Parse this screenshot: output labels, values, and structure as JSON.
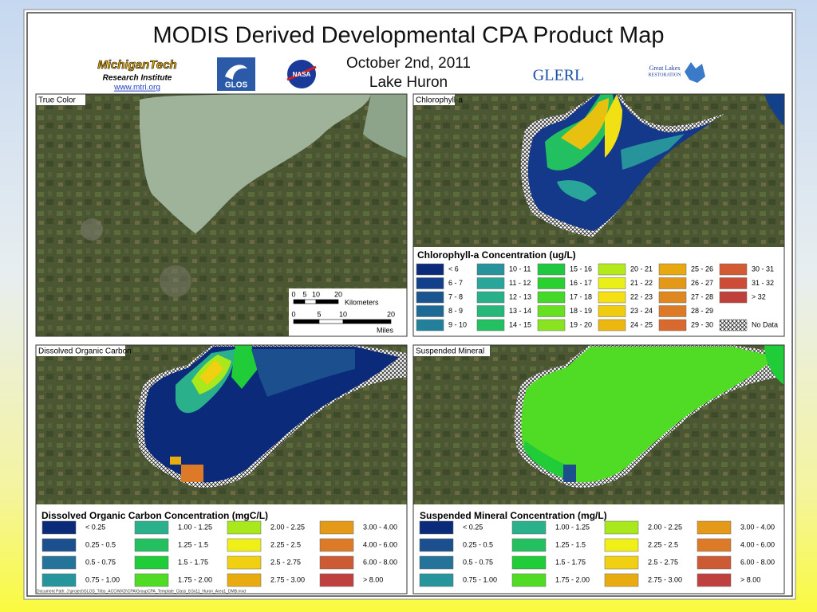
{
  "header": {
    "title": "MODIS Derived Developmental CPA Product Map",
    "date": "October 2nd, 2011",
    "lake": "Lake Huron"
  },
  "logos": {
    "mtri": {
      "name": "MichiganTech",
      "subtitle": "Research Institute",
      "url": "www.mtri.org"
    },
    "glos": "GLOS",
    "nasa": "NASA",
    "glerl": "GLERL",
    "glri": {
      "line1": "Great Lakes",
      "line2": "RESTORATION"
    }
  },
  "panels": {
    "true_color": {
      "label": "True Color",
      "scale": {
        "km_ticks": [
          "0",
          "5",
          "10",
          "20"
        ],
        "km_unit": "Kilometers",
        "mi_ticks": [
          "0",
          "5",
          "10",
          "20"
        ],
        "mi_unit": "Miles"
      }
    },
    "chlorophyll": {
      "label": "Chlorophyll-a",
      "legend": {
        "title": "Chlorophyll-a Concentration (ug/L)",
        "columns": [
          [
            {
              "label": "< 6",
              "color": "#0c2a7a"
            },
            {
              "label": "6 - 7",
              "color": "#12408a"
            },
            {
              "label": "7 - 8",
              "color": "#1a5590"
            },
            {
              "label": "8 - 9",
              "color": "#1e6a96"
            },
            {
              "label": "9 - 10",
              "color": "#23809a"
            }
          ],
          [
            {
              "label": "10 - 11",
              "color": "#27949c"
            },
            {
              "label": "11 - 12",
              "color": "#2aa59a"
            },
            {
              "label": "12 - 13",
              "color": "#27b08a"
            },
            {
              "label": "13 - 14",
              "color": "#25b878"
            },
            {
              "label": "14 - 15",
              "color": "#22c060"
            }
          ],
          [
            {
              "label": "15 - 16",
              "color": "#20c840"
            },
            {
              "label": "16 - 17",
              "color": "#2ad030"
            },
            {
              "label": "17 - 18",
              "color": "#44d828"
            },
            {
              "label": "18 - 19",
              "color": "#66e020"
            },
            {
              "label": "19 - 20",
              "color": "#88e420"
            }
          ],
          [
            {
              "label": "20 - 21",
              "color": "#b4ea1c"
            },
            {
              "label": "21 - 22",
              "color": "#e8f018"
            },
            {
              "label": "22 - 23",
              "color": "#f4e014"
            },
            {
              "label": "23 - 24",
              "color": "#f0cc10"
            },
            {
              "label": "24 - 25",
              "color": "#ecb810"
            }
          ],
          [
            {
              "label": "25 - 26",
              "color": "#e8a810"
            },
            {
              "label": "26 - 27",
              "color": "#e49818"
            },
            {
              "label": "27 - 28",
              "color": "#e08820"
            },
            {
              "label": "28 - 29",
              "color": "#dc7a28"
            },
            {
              "label": "29 - 30",
              "color": "#d86a30"
            }
          ],
          [
            {
              "label": "30 - 31",
              "color": "#d45a34"
            },
            {
              "label": "31 - 32",
              "color": "#cc4c38"
            },
            {
              "label": "> 32",
              "color": "#c0403c"
            }
          ]
        ],
        "no_data": "No Data"
      }
    },
    "doc": {
      "label": "Dissolved Organic Carbon",
      "legend": {
        "title": "Dissolved Organic Carbon Concentration (mgC/L)",
        "columns": [
          [
            {
              "label": "< 0.25",
              "color": "#0b2b7a"
            },
            {
              "label": "0.25 - 0.5",
              "color": "#1b4f8e"
            },
            {
              "label": "0.5 - 0.75",
              "color": "#24739a"
            },
            {
              "label": "0.75 - 1.00",
              "color": "#27959c"
            }
          ],
          [
            {
              "label": "1.00 - 1.25",
              "color": "#2ab08a"
            },
            {
              "label": "1.25 - 1.5",
              "color": "#24c060"
            },
            {
              "label": "1.5 - 1.75",
              "color": "#20cc38"
            },
            {
              "label": "1.75 - 2.00",
              "color": "#50dc24"
            }
          ],
          [
            {
              "label": "2.00 - 2.25",
              "color": "#a8e81c"
            },
            {
              "label": "2.25 - 2.5",
              "color": "#f0f018"
            },
            {
              "label": "2.5 - 2.75",
              "color": "#f0d010"
            },
            {
              "label": "2.75 - 3.00",
              "color": "#e8ac10"
            }
          ],
          [
            {
              "label": "3.00 - 4.00",
              "color": "#e49a18"
            },
            {
              "label": "4.00 - 6.00",
              "color": "#dc7a28"
            },
            {
              "label": "6.00 - 8.00",
              "color": "#cc5a34"
            },
            {
              "label": "> 8.00",
              "color": "#c04040"
            }
          ]
        ]
      }
    },
    "mineral": {
      "label": "Suspended Mineral",
      "legend": {
        "title": "Suspended Mineral Concentration (mg/L)",
        "columns": [
          [
            {
              "label": "< 0.25",
              "color": "#0b2b7a"
            },
            {
              "label": "0.25 - 0.5",
              "color": "#1b4f8e"
            },
            {
              "label": "0.5 - 0.75",
              "color": "#24739a"
            },
            {
              "label": "0.75 - 1.00",
              "color": "#27959c"
            }
          ],
          [
            {
              "label": "1.00 - 1.25",
              "color": "#2ab08a"
            },
            {
              "label": "1.25 - 1.5",
              "color": "#24c060"
            },
            {
              "label": "1.5 - 1.75",
              "color": "#20cc38"
            },
            {
              "label": "1.75 - 2.00",
              "color": "#50dc24"
            }
          ],
          [
            {
              "label": "2.00 - 2.25",
              "color": "#a8e81c"
            },
            {
              "label": "2.25 - 2.5",
              "color": "#f0f018"
            },
            {
              "label": "2.5 - 2.75",
              "color": "#f0d010"
            },
            {
              "label": "2.75 - 3.00",
              "color": "#e8ac10"
            }
          ],
          [
            {
              "label": "3.00 - 4.00",
              "color": "#e49a18"
            },
            {
              "label": "4.00 - 6.00",
              "color": "#dc7a28"
            },
            {
              "label": "6.00 - 8.00",
              "color": "#cc5a34"
            },
            {
              "label": "> 8.00",
              "color": "#c04040"
            }
          ]
        ]
      }
    }
  },
  "footer": "Document Path: J:\\project\\GLOS_Tribs_ACC\\MXD\\CPA\\GroupCPA_Template_Class_8.5x11_Huron_Area1_DMB.mxd"
}
